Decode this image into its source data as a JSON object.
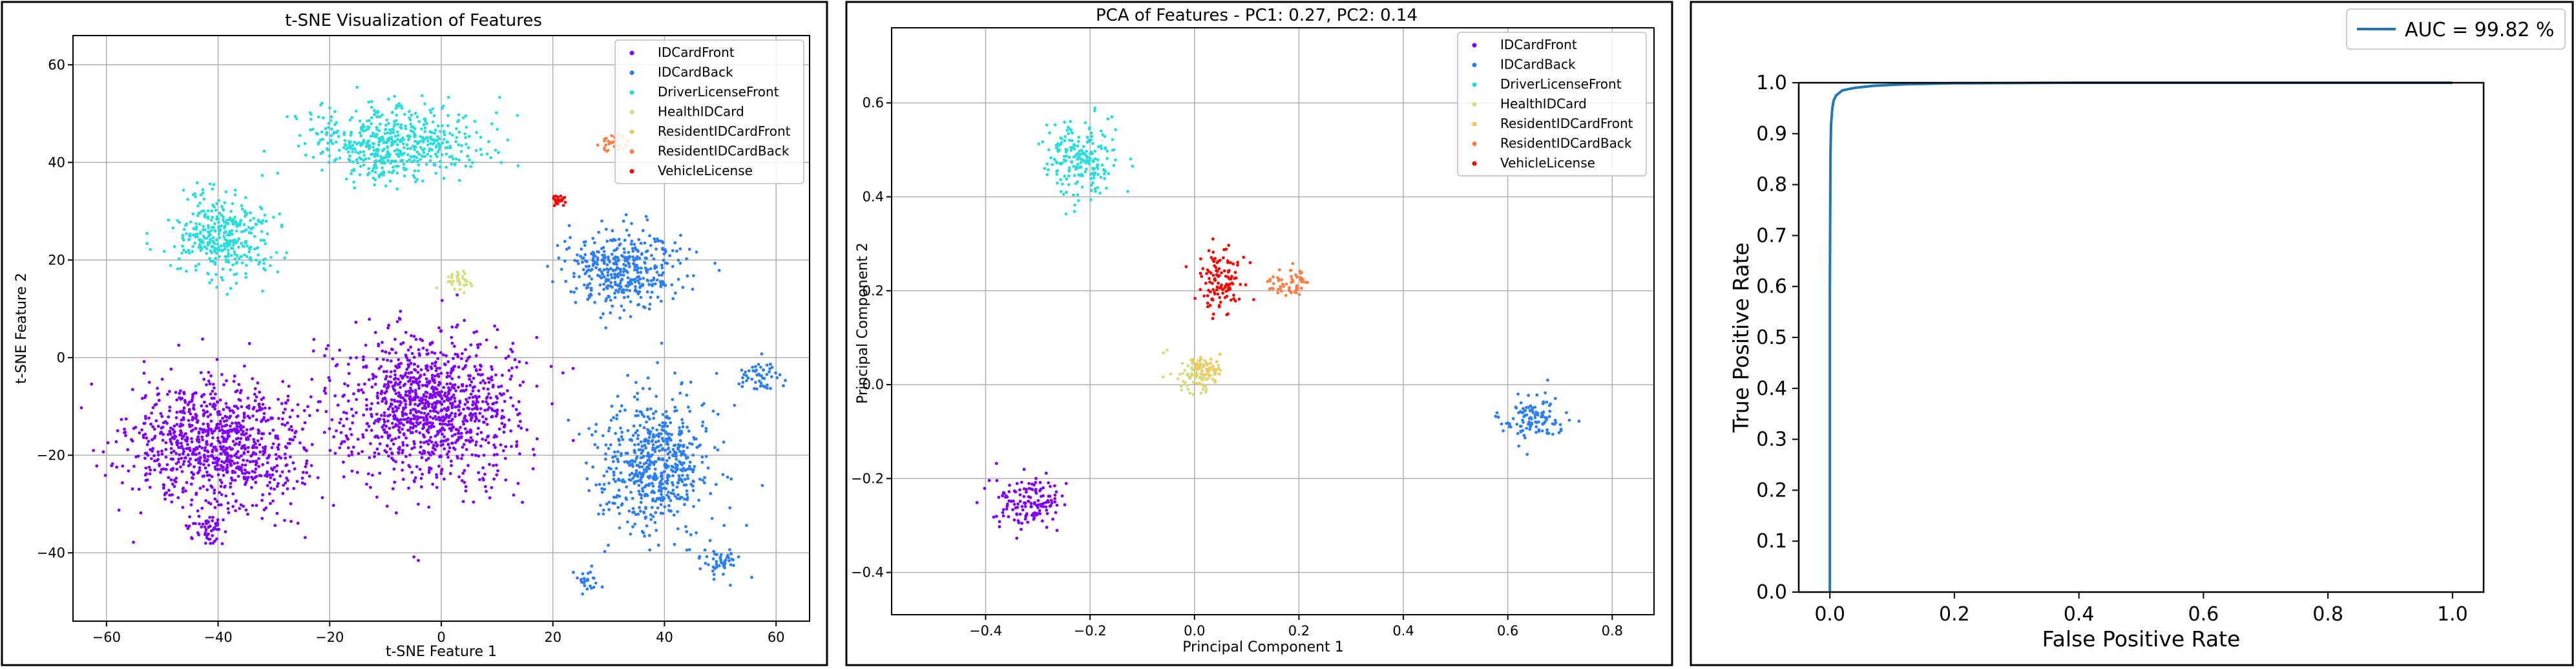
{
  "classes": [
    {
      "name": "IDCardFront",
      "color": "#8000ff"
    },
    {
      "name": "IDCardBack",
      "color": "#2c7ef7"
    },
    {
      "name": "DriverLicenseFront",
      "color": "#2adddd"
    },
    {
      "name": "HealthIDCard",
      "color": "#d4dd80"
    },
    {
      "name": "ResidentIDCardFront",
      "color": "#f2c85a"
    },
    {
      "name": "ResidentIDCardBack",
      "color": "#ff7e41"
    },
    {
      "name": "VehicleLicense",
      "color": "#ff0000"
    }
  ],
  "chart_data": [
    {
      "type": "scatter",
      "title": "t-SNE Visualization of Features",
      "xlabel": "t-SNE Feature 1",
      "ylabel": "t-SNE Feature 2",
      "xlim": [
        -66,
        66
      ],
      "ylim": [
        -54,
        66
      ],
      "xticks": [
        -60,
        -40,
        -20,
        0,
        20,
        40,
        60
      ],
      "yticks": [
        -40,
        -20,
        0,
        20,
        40,
        60
      ],
      "grid": true,
      "legend": "top-right",
      "clusters": [
        {
          "class": "IDCardFront",
          "center": [
            -40,
            -18
          ],
          "spread": [
            14,
            12
          ]
        },
        {
          "class": "IDCardFront",
          "center": [
            -2,
            -10
          ],
          "spread": [
            14,
            14
          ]
        },
        {
          "class": "IDCardFront",
          "center": [
            -42,
            -35
          ],
          "spread": [
            3,
            3
          ]
        },
        {
          "class": "IDCardBack",
          "center": [
            33,
            18
          ],
          "spread": [
            10,
            7
          ]
        },
        {
          "class": "IDCardBack",
          "center": [
            38,
            -22
          ],
          "spread": [
            9,
            12
          ]
        },
        {
          "class": "IDCardBack",
          "center": [
            57,
            -4
          ],
          "spread": [
            3,
            3
          ]
        },
        {
          "class": "IDCardBack",
          "center": [
            50,
            -42
          ],
          "spread": [
            3,
            3
          ]
        },
        {
          "class": "IDCardBack",
          "center": [
            26,
            -46
          ],
          "spread": [
            2,
            2
          ]
        },
        {
          "class": "DriverLicenseFront",
          "center": [
            -8,
            44
          ],
          "spread": [
            14,
            7
          ]
        },
        {
          "class": "DriverLicenseFront",
          "center": [
            -39,
            25
          ],
          "spread": [
            8,
            8
          ]
        },
        {
          "class": "HealthIDCard",
          "center": [
            3,
            16
          ],
          "spread": [
            3,
            2
          ]
        },
        {
          "class": "ResidentIDCardBack",
          "center": [
            31,
            44
          ],
          "spread": [
            3,
            2
          ]
        },
        {
          "class": "VehicleLicense",
          "center": [
            21,
            32
          ],
          "spread": [
            1,
            1
          ]
        }
      ]
    },
    {
      "type": "scatter",
      "title": "PCA of Features - PC1: 0.27, PC2: 0.14",
      "xlabel": "Principal Component 1",
      "ylabel": "Principal Component 2",
      "xlim": [
        -0.58,
        0.88
      ],
      "ylim": [
        -0.49,
        0.76
      ],
      "xticks": [
        -0.4,
        -0.2,
        0.0,
        0.2,
        0.4,
        0.6,
        0.8
      ],
      "yticks": [
        -0.4,
        -0.2,
        0.0,
        0.2,
        0.4,
        0.6
      ],
      "grid": true,
      "legend": "top-right",
      "clusters": [
        {
          "class": "IDCardFront",
          "center": [
            -0.32,
            -0.25
          ],
          "spread": [
            0.06,
            0.05
          ]
        },
        {
          "class": "IDCardBack",
          "center": [
            0.65,
            -0.07
          ],
          "spread": [
            0.06,
            0.04
          ]
        },
        {
          "class": "DriverLicenseFront",
          "center": [
            -0.22,
            0.48
          ],
          "spread": [
            0.06,
            0.07
          ]
        },
        {
          "class": "HealthIDCard",
          "center": [
            0.0,
            0.02
          ],
          "spread": [
            0.04,
            0.04
          ]
        },
        {
          "class": "ResidentIDCardFront",
          "center": [
            0.02,
            0.03
          ],
          "spread": [
            0.03,
            0.03
          ]
        },
        {
          "class": "ResidentIDCardBack",
          "center": [
            0.18,
            0.22
          ],
          "spread": [
            0.04,
            0.03
          ]
        },
        {
          "class": "VehicleLicense",
          "center": [
            0.05,
            0.22
          ],
          "spread": [
            0.04,
            0.06
          ]
        }
      ]
    },
    {
      "type": "line",
      "title": "",
      "xlabel": "False Positive Rate",
      "ylabel": "True Positive Rate",
      "xlim": [
        -0.05,
        1.05
      ],
      "ylim": [
        0.0,
        1.0
      ],
      "xticks": [
        0.0,
        0.2,
        0.4,
        0.6,
        0.8,
        1.0
      ],
      "yticks": [
        0.0,
        0.1,
        0.2,
        0.3,
        0.4,
        0.5,
        0.6,
        0.7,
        0.8,
        0.9,
        1.0
      ],
      "grid": false,
      "legend": "top-right",
      "series": [
        {
          "name": "AUC = 99.82 %",
          "color": "#1f77b4",
          "x": [
            0.0,
            0.0,
            0.001,
            0.002,
            0.004,
            0.006,
            0.01,
            0.02,
            0.04,
            0.07,
            0.12,
            0.2,
            0.4,
            0.7,
            1.0
          ],
          "y": [
            0.0,
            0.6,
            0.86,
            0.92,
            0.95,
            0.965,
            0.975,
            0.985,
            0.99,
            0.994,
            0.997,
            0.999,
            1.0,
            1.0,
            1.0
          ]
        }
      ]
    }
  ]
}
